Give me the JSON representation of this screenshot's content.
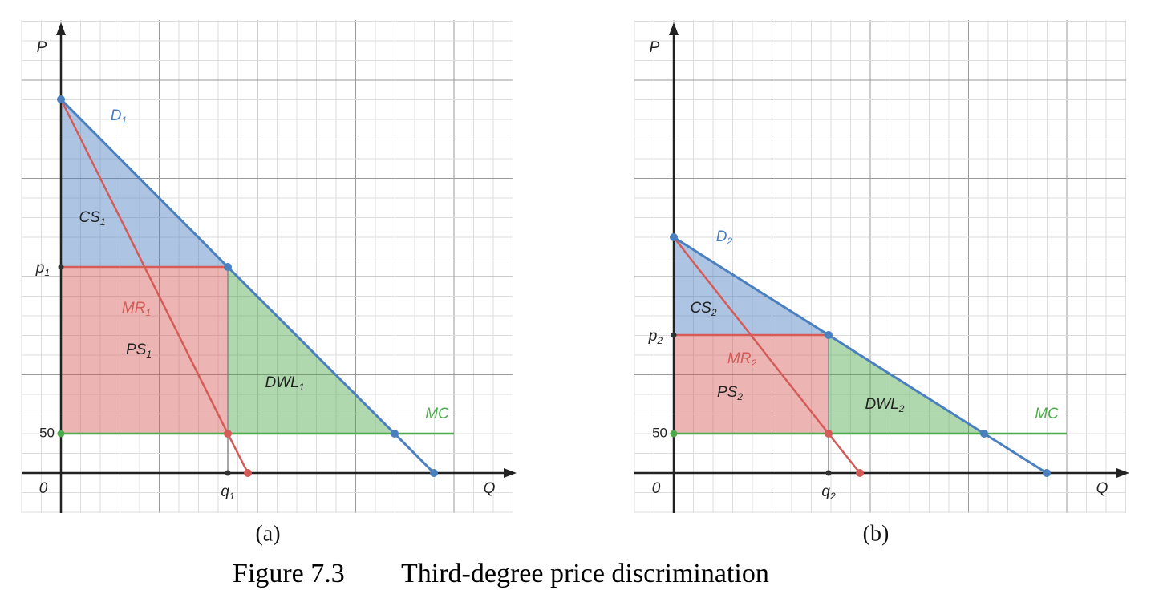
{
  "panels": [
    {
      "caption": "(a)",
      "axis": {
        "y": "P",
        "x": "Q",
        "origin": "0",
        "price_tick": "50"
      },
      "p_label": {
        "main": "p",
        "sub": "1"
      },
      "q_label": {
        "main": "q",
        "sub": "1"
      },
      "labels": [
        {
          "main": "D",
          "sub": "1"
        },
        {
          "main": "CS",
          "sub": "1"
        },
        {
          "main": "MR",
          "sub": "1"
        },
        {
          "main": "PS",
          "sub": "1"
        },
        {
          "main": "DWL",
          "sub": "1"
        },
        {
          "main": "MC"
        }
      ]
    },
    {
      "caption": "(b)",
      "axis": {
        "y": "P",
        "x": "Q",
        "origin": "0",
        "price_tick": "50"
      },
      "p_label": {
        "main": "p",
        "sub": "2"
      },
      "q_label": {
        "main": "q",
        "sub": "2"
      },
      "labels": [
        {
          "main": "D",
          "sub": "2"
        },
        {
          "main": "CS",
          "sub": "2"
        },
        {
          "main": "MR",
          "sub": "2"
        },
        {
          "main": "PS",
          "sub": "2"
        },
        {
          "main": "DWL",
          "sub": "2"
        },
        {
          "main": "MC"
        }
      ]
    }
  ],
  "figure_caption": {
    "number": "Figure 7.3",
    "title": "Third-degree price discrimination"
  }
}
